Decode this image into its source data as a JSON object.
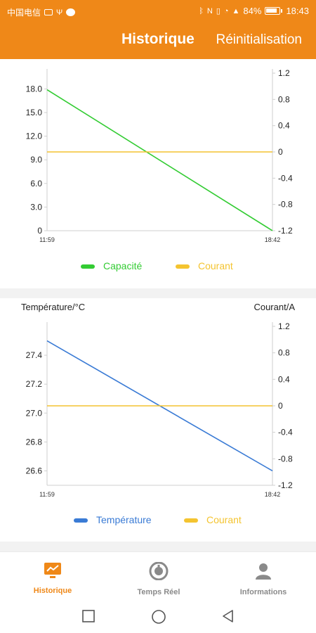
{
  "status_bar": {
    "carrier": "中国电信",
    "battery": "84%",
    "time": "18:43"
  },
  "header": {
    "title": "Historique",
    "reset_label": "Réinitialisation",
    "background": "#ef8818"
  },
  "chart_data": [
    {
      "type": "line",
      "x": [
        "11:59",
        "18:42"
      ],
      "y_left_ticks": [
        "0",
        "3.0",
        "6.0",
        "9.0",
        "12.0",
        "15.0",
        "18.0"
      ],
      "y_right_ticks": [
        "-1.2",
        "-0.8",
        "-0.4",
        "0",
        "0.4",
        "0.8",
        "1.2"
      ],
      "ylim_left": [
        0,
        20
      ],
      "ylim_right": [
        -1.2,
        1.2
      ],
      "series": [
        {
          "name": "Capacité",
          "axis": "left",
          "color": "#33cc33",
          "values": [
            17.9,
            0
          ]
        },
        {
          "name": "Courant",
          "axis": "right",
          "color": "#f4c430",
          "values": [
            0,
            0
          ]
        }
      ],
      "ylabel_left": "",
      "ylabel_right": "",
      "legend": "bottom"
    },
    {
      "type": "line",
      "x": [
        "11:59",
        "18:42"
      ],
      "y_left_ticks": [
        "26.6",
        "26.8",
        "27.0",
        "27.2",
        "27.4"
      ],
      "y_right_ticks": [
        "-1.2",
        "-0.8",
        "-0.4",
        "0",
        "0.4",
        "0.8",
        "1.2"
      ],
      "ylim_left": [
        26.5,
        27.6
      ],
      "ylim_right": [
        -1.2,
        1.2
      ],
      "series": [
        {
          "name": "Température",
          "axis": "left",
          "color": "#3a7bd5",
          "values": [
            27.5,
            26.6
          ]
        },
        {
          "name": "Courant",
          "axis": "right",
          "color": "#f4c430",
          "values": [
            0,
            0
          ]
        }
      ],
      "ylabel_left": "Température/°C",
      "ylabel_right": "Courant/A",
      "legend": "bottom"
    }
  ],
  "bottom_nav": {
    "items": [
      {
        "label": "Historique",
        "icon": "chart-icon",
        "active": true
      },
      {
        "label": "Temps Réel",
        "icon": "gauge-icon",
        "active": false
      },
      {
        "label": "Informations",
        "icon": "person-icon",
        "active": false
      }
    ],
    "active_color": "#ef8818",
    "inactive_color": "#8a8a8a"
  }
}
